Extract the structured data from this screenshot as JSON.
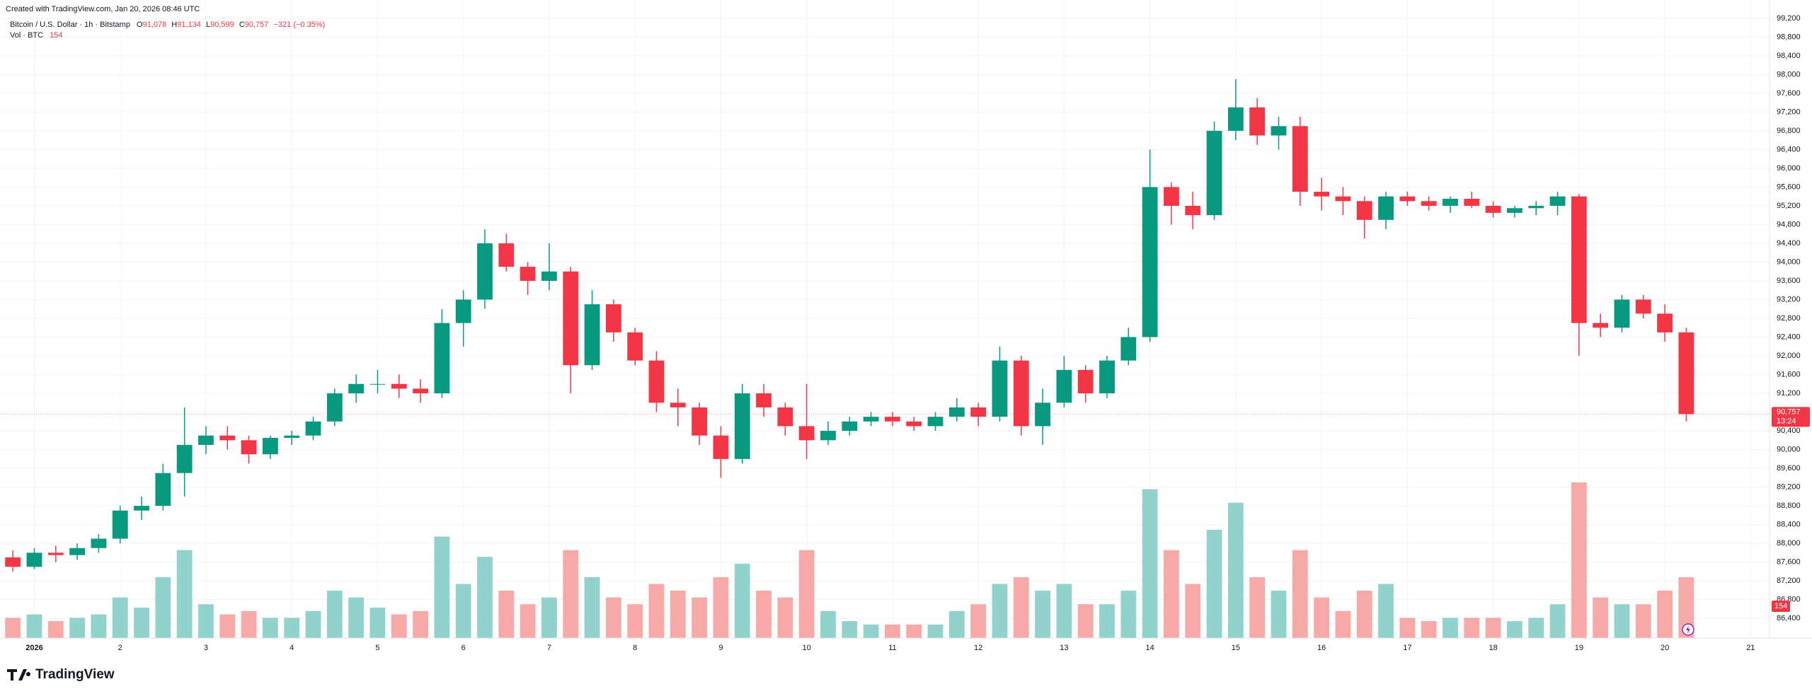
{
  "chart_data": {
    "type": "candlestick",
    "credit": "Created with TradingView.com, Jan 20, 2026 08:46 UTC",
    "title": "Bitcoin / U.S. Dollar · 1h · Bitstamp",
    "legend_values": [
      {
        "key": "O",
        "value": "91,078"
      },
      {
        "key": "H",
        "value": "91,134"
      },
      {
        "key": "L",
        "value": "90,599"
      },
      {
        "key": "C",
        "value": "90,757"
      }
    ],
    "change": "−321 (−0.35%)",
    "volume_title": "Vol · BTC",
    "volume_value": "154",
    "last_price": {
      "value": 90757,
      "label": "90,757"
    },
    "countdown": "13:24",
    "brand": "TradingView",
    "up_color": "#089981",
    "down_color": "#f23645",
    "volume_up_color": "#92d2cc",
    "volume_down_color": "#f7a9a7",
    "grid": true,
    "x": [
      0.75,
      1,
      1.25,
      1.5,
      1.75,
      2,
      2.25,
      2.5,
      2.75,
      3,
      3.25,
      3.5,
      3.75,
      4,
      4.25,
      4.5,
      4.75,
      5,
      5.25,
      5.5,
      5.75,
      6,
      6.25,
      6.5,
      6.75,
      7,
      7.25,
      7.5,
      7.75,
      8,
      8.25,
      8.5,
      8.75,
      9,
      9.25,
      9.5,
      9.75,
      10,
      10.25,
      10.5,
      10.75,
      11,
      11.25,
      11.5,
      11.75,
      12,
      12.25,
      12.5,
      12.75,
      13,
      13.25,
      13.5,
      13.75,
      14,
      14.25,
      14.5,
      14.75,
      15,
      15.25,
      15.5,
      15.75,
      16,
      16.25,
      16.5,
      16.75,
      17,
      17.25,
      17.5,
      17.75,
      18,
      18.25,
      18.5,
      18.75,
      19,
      19.25,
      19.5,
      19.75,
      20,
      20.25
    ],
    "open": [
      87700,
      87500,
      87800,
      87750,
      87900,
      88100,
      88700,
      88800,
      89500,
      90100,
      90300,
      90200,
      89900,
      90250,
      90300,
      90600,
      91200,
      91400,
      91400,
      91300,
      91200,
      92700,
      93200,
      94400,
      93900,
      93600,
      93800,
      91800,
      93100,
      92500,
      91900,
      91000,
      90900,
      90300,
      89800,
      91200,
      90900,
      90500,
      90200,
      90400,
      90600,
      90700,
      90600,
      90500,
      90700,
      90900,
      90700,
      91900,
      90500,
      91000,
      91700,
      91200,
      91900,
      92400,
      95600,
      95200,
      95000,
      96800,
      97300,
      96700,
      96900,
      95500,
      95400,
      95300,
      94900,
      95400,
      95300,
      95200,
      95350,
      95200,
      95050,
      95150,
      95200,
      95400,
      92700,
      92600,
      93200,
      92900,
      92500
    ],
    "high": [
      87850,
      87900,
      87950,
      88000,
      88200,
      88800,
      89000,
      89700,
      90900,
      90500,
      90500,
      90300,
      90300,
      90400,
      90700,
      91300,
      91600,
      91700,
      91600,
      91500,
      93000,
      93400,
      94700,
      94600,
      94000,
      94400,
      93900,
      93400,
      93200,
      92600,
      92100,
      91300,
      91000,
      90500,
      91400,
      91400,
      91000,
      91400,
      90600,
      90700,
      90800,
      90800,
      90700,
      90800,
      91100,
      91000,
      92200,
      92000,
      91300,
      92000,
      91800,
      92000,
      92600,
      96400,
      95700,
      95500,
      97000,
      97900,
      97500,
      97100,
      97100,
      95800,
      95600,
      95400,
      95500,
      95500,
      95400,
      95400,
      95500,
      95300,
      95200,
      95300,
      95500,
      95450,
      92900,
      93300,
      93300,
      93100,
      92600
    ],
    "low": [
      87400,
      87450,
      87600,
      87650,
      87800,
      88000,
      88500,
      88700,
      89000,
      89900,
      90000,
      89700,
      89800,
      90100,
      90200,
      90500,
      91000,
      91200,
      91100,
      91000,
      91100,
      92200,
      93000,
      93800,
      93300,
      93400,
      91200,
      91700,
      92300,
      91800,
      90800,
      90500,
      90100,
      89400,
      89700,
      90700,
      90300,
      89800,
      90100,
      90300,
      90500,
      90500,
      90400,
      90400,
      90600,
      90500,
      90600,
      90300,
      90100,
      90900,
      91000,
      91100,
      91800,
      92300,
      94800,
      94700,
      94900,
      96600,
      96500,
      96400,
      95200,
      95100,
      95000,
      94500,
      94700,
      95200,
      95100,
      95050,
      95150,
      94950,
      94950,
      95000,
      95000,
      92000,
      92400,
      92500,
      92800,
      92300,
      90600
    ],
    "close": [
      87500,
      87800,
      87750,
      87900,
      88100,
      88700,
      88800,
      89500,
      90100,
      90300,
      90200,
      89900,
      90250,
      90300,
      90600,
      91200,
      91400,
      91400,
      91300,
      91200,
      92700,
      93200,
      94400,
      93900,
      93600,
      93800,
      91800,
      93100,
      92500,
      91900,
      91000,
      90900,
      90300,
      89800,
      91200,
      90900,
      90500,
      90200,
      90400,
      90600,
      90700,
      90600,
      90500,
      90700,
      90900,
      90700,
      91900,
      90500,
      91000,
      91700,
      91200,
      91900,
      92400,
      95600,
      95200,
      95000,
      96800,
      97300,
      96700,
      96900,
      95500,
      95400,
      95300,
      94900,
      95400,
      95300,
      95200,
      95350,
      95200,
      95050,
      95150,
      95200,
      95400,
      92700,
      92600,
      93200,
      92900,
      92500,
      90757
    ],
    "volume": [
      300,
      350,
      250,
      300,
      350,
      600,
      450,
      900,
      1300,
      500,
      350,
      400,
      300,
      300,
      400,
      700,
      600,
      450,
      350,
      400,
      1500,
      800,
      1200,
      700,
      500,
      600,
      1300,
      900,
      600,
      500,
      800,
      700,
      600,
      900,
      1100,
      700,
      600,
      1300,
      400,
      250,
      200,
      200,
      200,
      200,
      400,
      500,
      800,
      900,
      700,
      800,
      500,
      500,
      700,
      2200,
      1300,
      800,
      1600,
      2000,
      900,
      700,
      1300,
      600,
      400,
      700,
      800,
      300,
      250,
      300,
      300,
      300,
      250,
      300,
      500,
      2300,
      600,
      500,
      500,
      700,
      900
    ],
    "xlim": [
      0.6,
      21.22
    ],
    "xticks": [
      {
        "value": 1,
        "label": "2026"
      },
      2,
      3,
      4,
      5,
      6,
      7,
      8,
      9,
      10,
      11,
      12,
      13,
      14,
      15,
      16,
      17,
      18,
      19,
      20,
      21
    ],
    "ylim": [
      85980,
      99590
    ],
    "yticks": [
      {
        "value": 86400,
        "label": "86,400"
      },
      {
        "value": 86800,
        "label": "86,800"
      },
      {
        "value": 87200,
        "label": "87,200"
      },
      {
        "value": 87600,
        "label": "87,600"
      },
      {
        "value": 88000,
        "label": "88,000"
      },
      {
        "value": 88400,
        "label": "88,400"
      },
      {
        "value": 88800,
        "label": "88,800"
      },
      {
        "value": 89200,
        "label": "89,200"
      },
      {
        "value": 89600,
        "label": "89,600"
      },
      {
        "value": 90000,
        "label": "90,000"
      },
      {
        "value": 90400,
        "label": "90,400"
      },
      {
        "value": 90800,
        "label": "90,800"
      },
      {
        "value": 91200,
        "label": "91,200"
      },
      {
        "value": 91600,
        "label": "91,600"
      },
      {
        "value": 92000,
        "label": "92,000"
      },
      {
        "value": 92400,
        "label": "92,400"
      },
      {
        "value": 92800,
        "label": "92,800"
      },
      {
        "value": 93200,
        "label": "93,200"
      },
      {
        "value": 93600,
        "label": "93,600"
      },
      {
        "value": 94000,
        "label": "94,000"
      },
      {
        "value": 94400,
        "label": "94,400"
      },
      {
        "value": 94800,
        "label": "94,800"
      },
      {
        "value": 95200,
        "label": "95,200"
      },
      {
        "value": 95600,
        "label": "95,600"
      },
      {
        "value": 96000,
        "label": "96,000"
      },
      {
        "value": 96400,
        "label": "96,400"
      },
      {
        "value": 96800,
        "label": "96,800"
      },
      {
        "value": 97200,
        "label": "97,200"
      },
      {
        "value": 97600,
        "label": "97,600"
      },
      {
        "value": 98000,
        "label": "98,000"
      },
      {
        "value": 98400,
        "label": "98,400"
      },
      {
        "value": 98800,
        "label": "98,800"
      },
      {
        "value": 99200,
        "label": "99,200"
      }
    ]
  }
}
